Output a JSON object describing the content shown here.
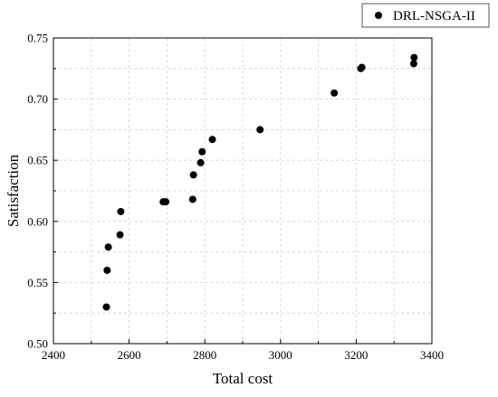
{
  "chart_data": {
    "type": "scatter",
    "title": "",
    "xlabel": "Total cost",
    "ylabel": "Satisfaction",
    "xlim": [
      2400,
      3400
    ],
    "ylim": [
      0.5,
      0.75
    ],
    "xticks": [
      2400,
      2600,
      2800,
      3000,
      3200,
      3400
    ],
    "xtick_labels": [
      "2400",
      "2600",
      "2800",
      "3000",
      "3200",
      "3400"
    ],
    "yticks": [
      0.5,
      0.55,
      0.6,
      0.65,
      0.7,
      0.75
    ],
    "ytick_labels": [
      "0.50",
      "0.55",
      "0.60",
      "0.65",
      "0.70",
      "0.75"
    ],
    "grid": "dashed",
    "legend_position": "top-right-outside",
    "series": [
      {
        "name": "DRL-NSGA-II",
        "color": "#000000",
        "marker": "circle",
        "points": [
          {
            "x": 2540,
            "y": 0.53
          },
          {
            "x": 2542,
            "y": 0.56
          },
          {
            "x": 2545,
            "y": 0.579
          },
          {
            "x": 2576,
            "y": 0.589
          },
          {
            "x": 2578,
            "y": 0.608
          },
          {
            "x": 2690,
            "y": 0.616
          },
          {
            "x": 2697,
            "y": 0.616
          },
          {
            "x": 2768,
            "y": 0.618
          },
          {
            "x": 2770,
            "y": 0.638
          },
          {
            "x": 2789,
            "y": 0.648
          },
          {
            "x": 2793,
            "y": 0.657
          },
          {
            "x": 2820,
            "y": 0.667
          },
          {
            "x": 2946,
            "y": 0.675
          },
          {
            "x": 3142,
            "y": 0.705
          },
          {
            "x": 3212,
            "y": 0.725
          },
          {
            "x": 3215,
            "y": 0.726
          },
          {
            "x": 3352,
            "y": 0.729
          },
          {
            "x": 3353,
            "y": 0.734
          }
        ]
      }
    ]
  }
}
